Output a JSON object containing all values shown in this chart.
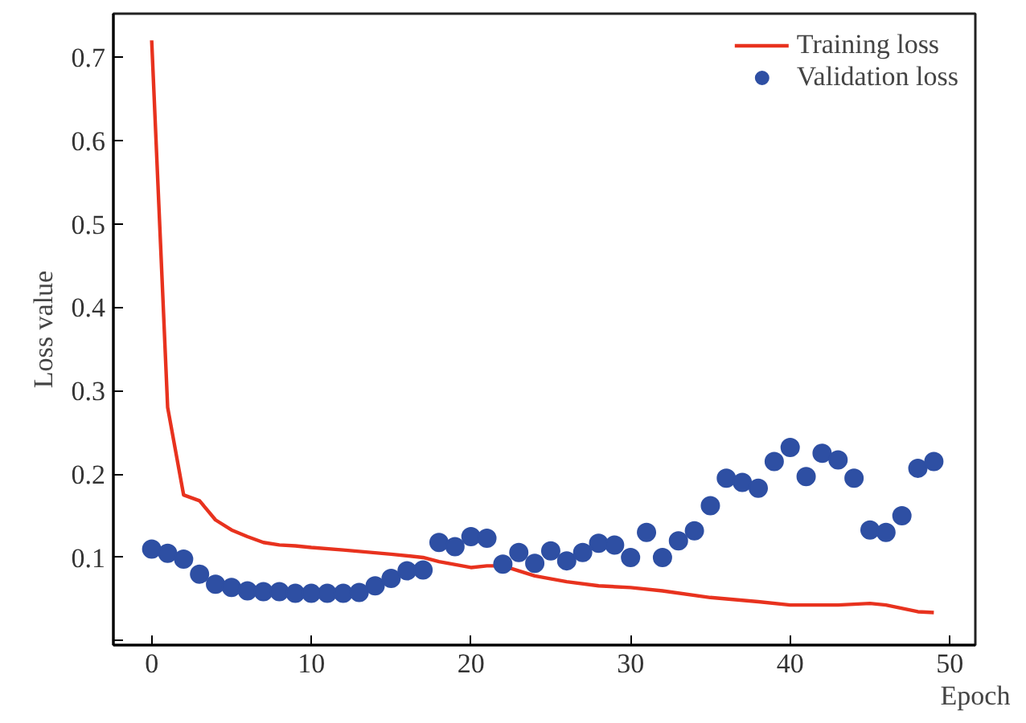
{
  "chart_data": {
    "type": "line",
    "xlabel": "Epoch",
    "ylabel": "Loss value",
    "xlim": [
      -2.4,
      51.6
    ],
    "ylim": [
      -0.005,
      0.752
    ],
    "xticks": [
      0,
      10,
      20,
      30,
      40,
      50
    ],
    "yticks": [
      {
        "value": 0,
        "label": null
      },
      0.1,
      0.2,
      0.3,
      0.4,
      0.5,
      0.6,
      0.7
    ],
    "grid": false,
    "legend": "top right",
    "series": [
      {
        "name": "Training loss",
        "color": "#e8321e",
        "x": [
          0,
          1,
          2,
          3,
          4,
          5,
          6,
          7,
          8,
          9,
          10,
          12,
          15,
          17,
          18,
          20,
          21,
          22,
          24,
          26,
          28,
          30,
          32,
          35,
          38,
          40,
          43,
          45,
          46,
          48,
          49
        ],
        "values": [
          0.72,
          0.28,
          0.175,
          0.168,
          0.145,
          0.133,
          0.125,
          0.118,
          0.115,
          0.114,
          0.112,
          0.109,
          0.104,
          0.1,
          0.095,
          0.088,
          0.09,
          0.09,
          0.078,
          0.071,
          0.066,
          0.064,
          0.06,
          0.052,
          0.047,
          0.043,
          0.043,
          0.045,
          0.043,
          0.035,
          0.034
        ]
      },
      {
        "name": "Validation loss",
        "type": "scatter",
        "marker": "circle",
        "color": "#2e4fa3",
        "x": [
          0,
          1,
          2,
          3,
          4,
          5,
          6,
          7,
          8,
          9,
          10,
          11,
          12,
          13,
          14,
          15,
          16,
          17,
          18,
          19,
          20,
          21,
          22,
          23,
          24,
          25,
          26,
          27,
          28,
          29,
          30,
          31,
          32,
          33,
          34,
          35,
          36,
          37,
          38,
          39,
          40,
          41,
          42,
          43,
          44,
          45,
          46,
          47,
          48,
          49
        ],
        "values": [
          0.11,
          0.105,
          0.098,
          0.08,
          0.068,
          0.064,
          0.06,
          0.059,
          0.059,
          0.057,
          0.057,
          0.057,
          0.057,
          0.058,
          0.066,
          0.075,
          0.084,
          0.085,
          0.118,
          0.113,
          0.125,
          0.123,
          0.092,
          0.106,
          0.093,
          0.108,
          0.096,
          0.106,
          0.117,
          0.115,
          0.1,
          0.13,
          0.1,
          0.12,
          0.132,
          0.162,
          0.195,
          0.19,
          0.183,
          0.215,
          0.232,
          0.197,
          0.225,
          0.217,
          0.195,
          0.133,
          0.13,
          0.15,
          0.207,
          0.215
        ]
      }
    ]
  }
}
